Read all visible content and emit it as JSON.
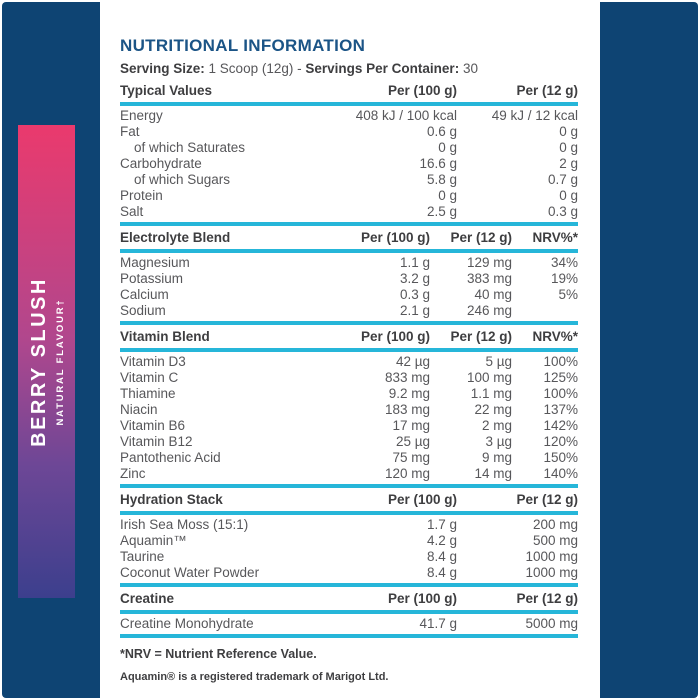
{
  "colors": {
    "frame_navy": "#0e4473",
    "rule_cyan": "#26b6d9",
    "title_blue": "#1b5486",
    "heading_charcoal": "#3e3e40",
    "body_gray": "#57575a",
    "banner_gradient_top": "#ea3a6d",
    "banner_gradient_bottom": "#3c3f8d"
  },
  "banner": {
    "flavour": "BERRY SLUSH",
    "subtitle": "NATURAL FLAVOUR†"
  },
  "header": {
    "title": "NUTRITIONAL INFORMATION",
    "serving_size_label": "Serving Size:",
    "serving_size_value": "1 Scoop (12g)",
    "separator": "-",
    "servings_per_container_label": "Servings Per Container:",
    "servings_per_container_value": "30"
  },
  "sections": [
    {
      "name": "Typical Values",
      "columns": [
        "Per (100 g)",
        "Per (12 g)"
      ],
      "rows": [
        {
          "label": "Energy",
          "indent": false,
          "values": [
            "408 kJ / 100 kcal",
            "49 kJ / 12 kcal"
          ]
        },
        {
          "label": "Fat",
          "indent": false,
          "values": [
            "0.6 g",
            "0 g"
          ]
        },
        {
          "label": "of which Saturates",
          "indent": true,
          "values": [
            "0 g",
            "0 g"
          ]
        },
        {
          "label": "Carbohydrate",
          "indent": false,
          "values": [
            "16.6 g",
            "2 g"
          ]
        },
        {
          "label": "of which Sugars",
          "indent": true,
          "values": [
            "5.8 g",
            "0.7 g"
          ]
        },
        {
          "label": "Protein",
          "indent": false,
          "values": [
            "0 g",
            "0 g"
          ]
        },
        {
          "label": "Salt",
          "indent": false,
          "values": [
            "2.5 g",
            "0.3 g"
          ]
        }
      ]
    },
    {
      "name": "Electrolyte Blend",
      "columns": [
        "Per (100 g)",
        "Per (12 g)",
        "NRV%*"
      ],
      "rows": [
        {
          "label": "Magnesium",
          "indent": false,
          "values": [
            "1.1 g",
            "129 mg",
            "34%"
          ]
        },
        {
          "label": "Potassium",
          "indent": false,
          "values": [
            "3.2 g",
            "383 mg",
            "19%"
          ]
        },
        {
          "label": "Calcium",
          "indent": false,
          "values": [
            "0.3 g",
            "40 mg",
            "5%"
          ]
        },
        {
          "label": "Sodium",
          "indent": false,
          "values": [
            "2.1 g",
            "246 mg",
            ""
          ]
        }
      ]
    },
    {
      "name": "Vitamin Blend",
      "columns": [
        "Per (100 g)",
        "Per (12 g)",
        "NRV%*"
      ],
      "rows": [
        {
          "label": "Vitamin D3",
          "indent": false,
          "values": [
            "42 µg",
            "5 µg",
            "100%"
          ]
        },
        {
          "label": "Vitamin C",
          "indent": false,
          "values": [
            "833 mg",
            "100 mg",
            "125%"
          ]
        },
        {
          "label": "Thiamine",
          "indent": false,
          "values": [
            "9.2 mg",
            "1.1 mg",
            "100%"
          ]
        },
        {
          "label": "Niacin",
          "indent": false,
          "values": [
            "183 mg",
            "22 mg",
            "137%"
          ]
        },
        {
          "label": "Vitamin B6",
          "indent": false,
          "values": [
            "17 mg",
            "2 mg",
            "142%"
          ]
        },
        {
          "label": "Vitamin B12",
          "indent": false,
          "values": [
            "25 µg",
            "3 µg",
            "120%"
          ]
        },
        {
          "label": "Pantothenic Acid",
          "indent": false,
          "values": [
            "75 mg",
            "9 mg",
            "150%"
          ]
        },
        {
          "label": "Zinc",
          "indent": false,
          "values": [
            "120 mg",
            "14 mg",
            "140%"
          ]
        }
      ]
    },
    {
      "name": "Hydration Stack",
      "columns": [
        "Per (100 g)",
        "Per (12 g)"
      ],
      "rows": [
        {
          "label": "Irish Sea Moss (15:1)",
          "indent": false,
          "values": [
            "1.7 g",
            "200 mg"
          ]
        },
        {
          "label": "Aquamin™",
          "indent": false,
          "values": [
            "4.2 g",
            "500 mg"
          ]
        },
        {
          "label": "Taurine",
          "indent": false,
          "values": [
            "8.4 g",
            "1000 mg"
          ]
        },
        {
          "label": "Coconut Water Powder",
          "indent": false,
          "values": [
            "8.4 g",
            "1000 mg"
          ]
        }
      ]
    },
    {
      "name": "Creatine",
      "columns": [
        "Per (100 g)",
        "Per (12 g)"
      ],
      "rows": [
        {
          "label": "Creatine Monohydrate",
          "indent": false,
          "values": [
            "41.7 g",
            "5000 mg"
          ]
        }
      ]
    }
  ],
  "footnotes": {
    "nrv": "*NRV = Nutrient Reference Value.",
    "aquamin": "Aquamin® is a registered trademark of Marigot Ltd."
  }
}
